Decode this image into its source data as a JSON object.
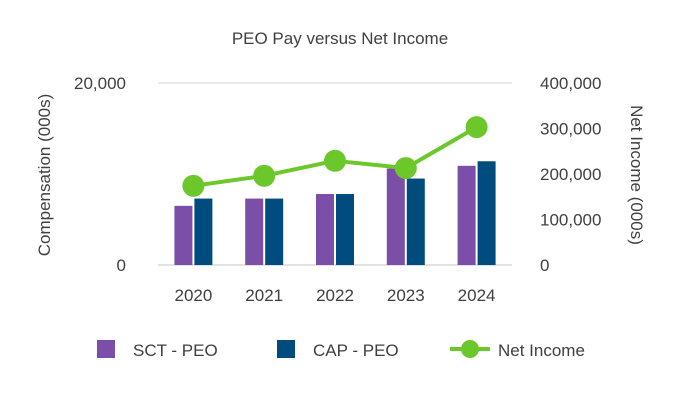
{
  "chart_data": {
    "type": "bar",
    "title": "PEO Pay versus Net Income",
    "categories": [
      "2020",
      "2021",
      "2022",
      "2023",
      "2024"
    ],
    "ylabel": "Compensation (000s)",
    "y2label": "Net Income (000s)",
    "ylim": [
      0,
      20000
    ],
    "y2lim": [
      0,
      400000
    ],
    "y_ticks": [
      "0",
      "20,000"
    ],
    "y2_ticks": [
      "0",
      "100,000",
      "200,000",
      "300,000",
      "400,000"
    ],
    "series": [
      {
        "name": "SCT - PEO",
        "type": "bar",
        "axis": "left",
        "color": "#7b4fa8",
        "values": [
          6500,
          7300,
          7800,
          10600,
          10900
        ]
      },
      {
        "name": "CAP - PEO",
        "type": "bar",
        "axis": "left",
        "color": "#004c7f",
        "values": [
          7300,
          7300,
          7800,
          9500,
          11400
        ]
      },
      {
        "name": "Net Income",
        "type": "line",
        "axis": "right",
        "color": "#6cc72b",
        "values": [
          174000,
          196000,
          229000,
          213000,
          303000
        ]
      }
    ],
    "legend_position": "bottom",
    "grid": false
  }
}
